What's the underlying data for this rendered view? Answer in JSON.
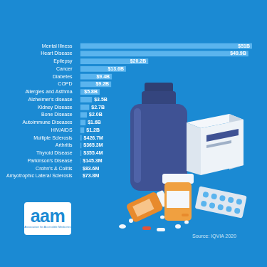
{
  "chart_data": {
    "type": "bar",
    "orientation": "horizontal",
    "categories": [
      "Mental Illness",
      "Heart Disease",
      "Epilepsy",
      "Cancer",
      "Diabetes",
      "COPD",
      "Allergies and Asthma",
      "Alzheimer's disease",
      "Kidney Disease",
      "Bone Disease",
      "Autoimmune Diseases",
      "HIV/AIDS",
      "Multiple Sclerosis",
      "Arthritis",
      "Thyroid Disease",
      "Parkinson's Disease",
      "Crohn's & Colitis",
      "Amyotrophic Lateral Sclerosis"
    ],
    "values": [
      51,
      49.9,
      20.2,
      13.6,
      9.4,
      9.2,
      5.8,
      3.5,
      2.7,
      2.0,
      1.6,
      1.2,
      0.4267,
      0.3653,
      0.3554,
      0.1453,
      0.0836,
      0.0738
    ],
    "value_labels": [
      "$51B",
      "$49.9B",
      "$20.2B",
      "$13.6B",
      "$9.4B",
      "$9.2B",
      "$5.8B",
      "$3.5B",
      "$2.7B",
      "$2.0B",
      "$1.6B",
      "$1.2B",
      "$426.7M",
      "$365.3M",
      "$355.4M",
      "$145.3M",
      "$83.6M",
      "$73.8M"
    ],
    "color": "#5ab4ee",
    "data_labels": true,
    "grid": false,
    "tick_labels": "y"
  },
  "logo": {
    "text": "aam",
    "caption": "Association for Accessible Medicines"
  },
  "source": "Source: IQVIA 2020"
}
